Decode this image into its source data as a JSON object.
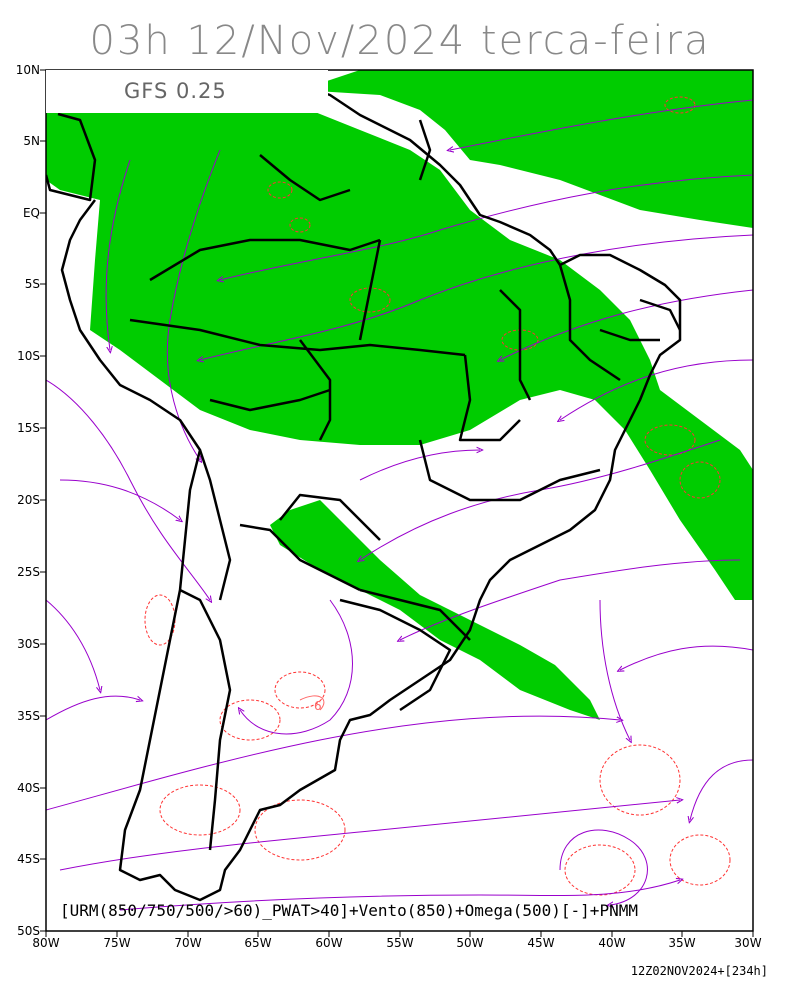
{
  "title": "03h 12/Nov/2024 terca-feira",
  "model": "GFS 0.25",
  "legend": "[URM(850/750/500/>60)_PWAT>40]+Vento(850)+Omega(500)[-]+PNMM",
  "run_stamp": "12Z02NOV2024+[234h]",
  "lat_labels": [
    "10N",
    "5N",
    "EQ",
    "5S",
    "10S",
    "15S",
    "20S",
    "25S",
    "30S",
    "35S",
    "40S",
    "45S",
    "50S"
  ],
  "lon_labels": [
    "80W",
    "75W",
    "70W",
    "65W",
    "60W",
    "55W",
    "50W",
    "45W",
    "40W",
    "35W",
    "30W"
  ],
  "contour_label": "6",
  "colors": {
    "humidity_fill": "#00cc00",
    "streamline": "#9900cc",
    "omega_contour": "#ff3333",
    "borders": "#000000",
    "title": "#888888"
  },
  "extent": {
    "lon_min": -80,
    "lon_max": -30,
    "lat_min": -50,
    "lat_max": 10
  }
}
